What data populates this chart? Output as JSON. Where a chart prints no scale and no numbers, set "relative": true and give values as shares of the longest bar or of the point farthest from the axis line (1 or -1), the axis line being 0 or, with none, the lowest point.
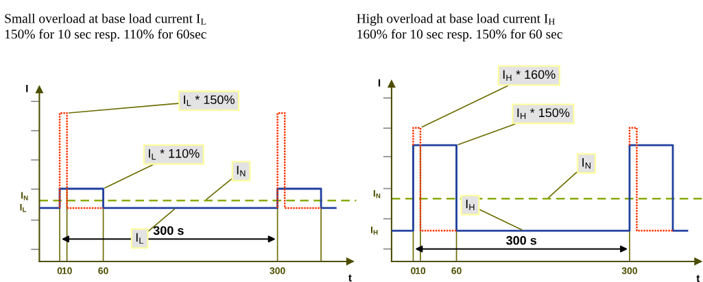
{
  "chart_data": [
    {
      "type": "line",
      "title": "Small overload at base load current I$_{L}$",
      "subtitle": "150% for 10 sec resp. 110% for 60sec",
      "xlabel": "t",
      "ylabel": "I",
      "relative": true,
      "xlim": [
        -28,
        400
      ],
      "xticks": [
        0,
        10,
        60,
        300
      ],
      "series": [
        {
          "color": "#1f3f9f",
          "line_style": "solid",
          "x": [
            -27,
            0,
            0,
            60,
            60,
            300,
            300,
            360,
            360,
            380
          ],
          "values": [
            0.36,
            0.36,
            0.49,
            0.49,
            0.36,
            0.36,
            0.49,
            0.49,
            0.36,
            0.36
          ]
        },
        {
          "color": "#ff3300",
          "line_style": "dotted",
          "x": [
            0,
            0,
            10,
            10,
            60,
            180,
            300,
            300,
            310,
            310,
            360
          ],
          "values": [
            0.36,
            1,
            1,
            0.36,
            0.36,
            null,
            0.36,
            1,
            1,
            0.36,
            0.36
          ]
        }
      ],
      "ref_lines": [
        {
          "axis": "y",
          "value": 0.41,
          "label": "I$_{N}$",
          "color": "#88aa00",
          "line_style": "dashed"
        },
        {
          "axis": "x",
          "value": 0,
          "color": "#6b6b00"
        },
        {
          "axis": "x",
          "value": 10,
          "color": "#6b6b00"
        },
        {
          "axis": "x",
          "value": 60,
          "color": "#6b6b00"
        },
        {
          "axis": "x",
          "value": 300,
          "color": "#6b6b00"
        },
        {
          "axis": "x",
          "value": 360,
          "color": "#6b6b00"
        }
      ],
      "annotations": [
        {
          "text": "I$_{L}$ * 150%",
          "x": 10,
          "y": 1
        },
        {
          "text": "I$_{L}$ * 110%",
          "x": 60,
          "y": 0.49
        },
        {
          "text": "I$_{N}$",
          "x": 200,
          "y": 0.41
        },
        {
          "text": "I$_{L}$",
          "x": 160,
          "y": 0.36
        },
        {
          "text": "I$_{L}$",
          "x": -27,
          "y": 0.36
        },
        "300 s"
      ]
    },
    {
      "type": "line",
      "title": "High overload at base load current I$_{H}$",
      "subtitle": "160% for 10 sec resp. 150% for 60 sec",
      "xlabel": "t",
      "ylabel": "I",
      "relative": true,
      "xlim": [
        -30,
        395
      ],
      "xticks": [
        0,
        10,
        60,
        300
      ],
      "series": [
        {
          "color": "#1f3f9f",
          "line_style": "solid",
          "x": [
            -30,
            0,
            0,
            60,
            60,
            300,
            300,
            360,
            360,
            380
          ],
          "values": [
            0.23,
            0.23,
            0.87,
            0.87,
            0.23,
            0.23,
            0.87,
            0.87,
            0.23,
            0.23
          ]
        },
        {
          "color": "#ff3300",
          "line_style": "dotted",
          "x": [
            0,
            0,
            10,
            10,
            60,
            180,
            300,
            300,
            310,
            310,
            360
          ],
          "values": [
            0.87,
            1,
            1,
            0.23,
            0.23,
            null,
            0.87,
            1,
            1,
            0.23,
            0.23
          ]
        }
      ],
      "ref_lines": [
        {
          "axis": "y",
          "value": 0.47,
          "label": "I$_{N}$",
          "color": "#88aa00",
          "line_style": "dashed"
        },
        {
          "axis": "x",
          "value": 0,
          "color": "#6b6b00"
        },
        {
          "axis": "x",
          "value": 10,
          "color": "#6b6b00"
        },
        {
          "axis": "x",
          "value": 60,
          "color": "#6b6b00"
        },
        {
          "axis": "x",
          "value": 300,
          "color": "#6b6b00"
        }
      ],
      "annotations": [
        {
          "text": "I$_{H}$ * 160%",
          "x": 10,
          "y": 1
        },
        {
          "text": "I$_{H}$ * 150%",
          "x": 60,
          "y": 0.87
        },
        {
          "text": "I$_{N}$",
          "x": 186,
          "y": 0.47
        },
        {
          "text": "I$_{H}$",
          "x": 153,
          "y": 0.23
        },
        {
          "text": "I$_{H}$",
          "x": -30,
          "y": 0.23
        },
        "300 s"
      ]
    }
  ]
}
